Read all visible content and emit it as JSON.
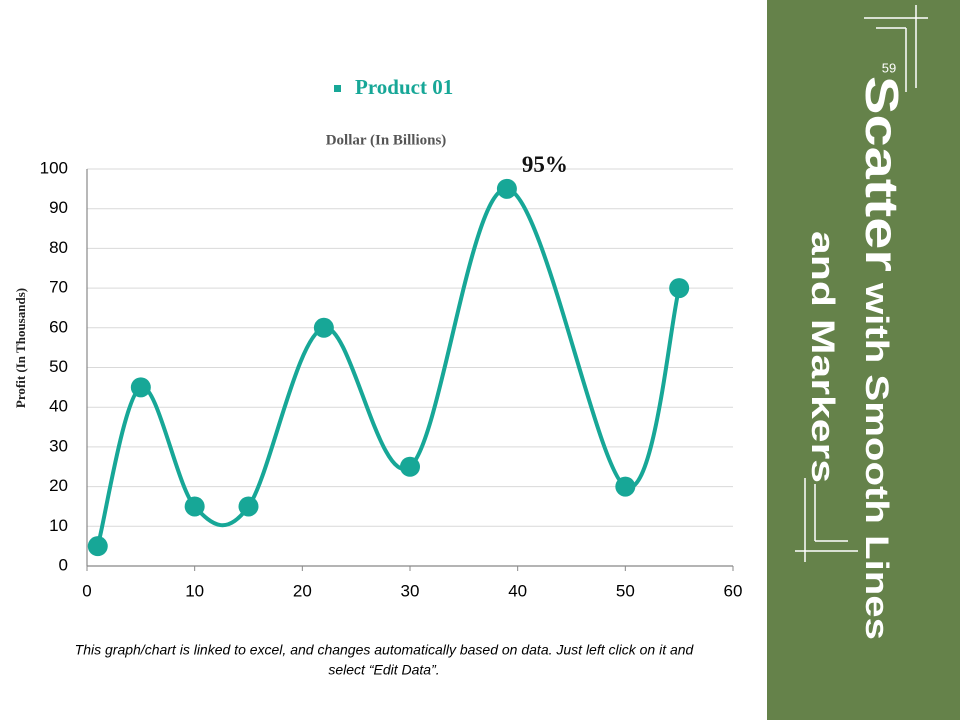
{
  "chart_data": {
    "type": "scatter",
    "title": "Dollar (In Billions)",
    "y_label": "Profit  (In Thousands)",
    "series": [
      {
        "name": "Product 01",
        "color": "#17a797",
        "x": [
          1,
          5,
          10,
          15,
          22,
          30,
          39,
          50,
          55
        ],
        "values": [
          5,
          45,
          15,
          15,
          60,
          25,
          95,
          20,
          70
        ],
        "value_labels": [
          null,
          null,
          null,
          null,
          null,
          null,
          "95%",
          null,
          null
        ]
      }
    ],
    "smooth": true,
    "xlim": [
      0,
      60
    ],
    "xticks": [
      0,
      10,
      20,
      30,
      40,
      50,
      60
    ],
    "ylim": [
      0,
      100
    ],
    "yticks": [
      0,
      10,
      20,
      30,
      40,
      50,
      60,
      70,
      80,
      90,
      100
    ],
    "grid": true,
    "legend": "top"
  },
  "slide": {
    "number": "59",
    "title_big": "Scatter",
    "title_rest": " with Smooth Lines",
    "title_line2": "and Markers",
    "footer": [
      "This graph/chart is linked to excel, and changes automatically based on data. Just left click on it and",
      "select “Edit Data”."
    ]
  }
}
